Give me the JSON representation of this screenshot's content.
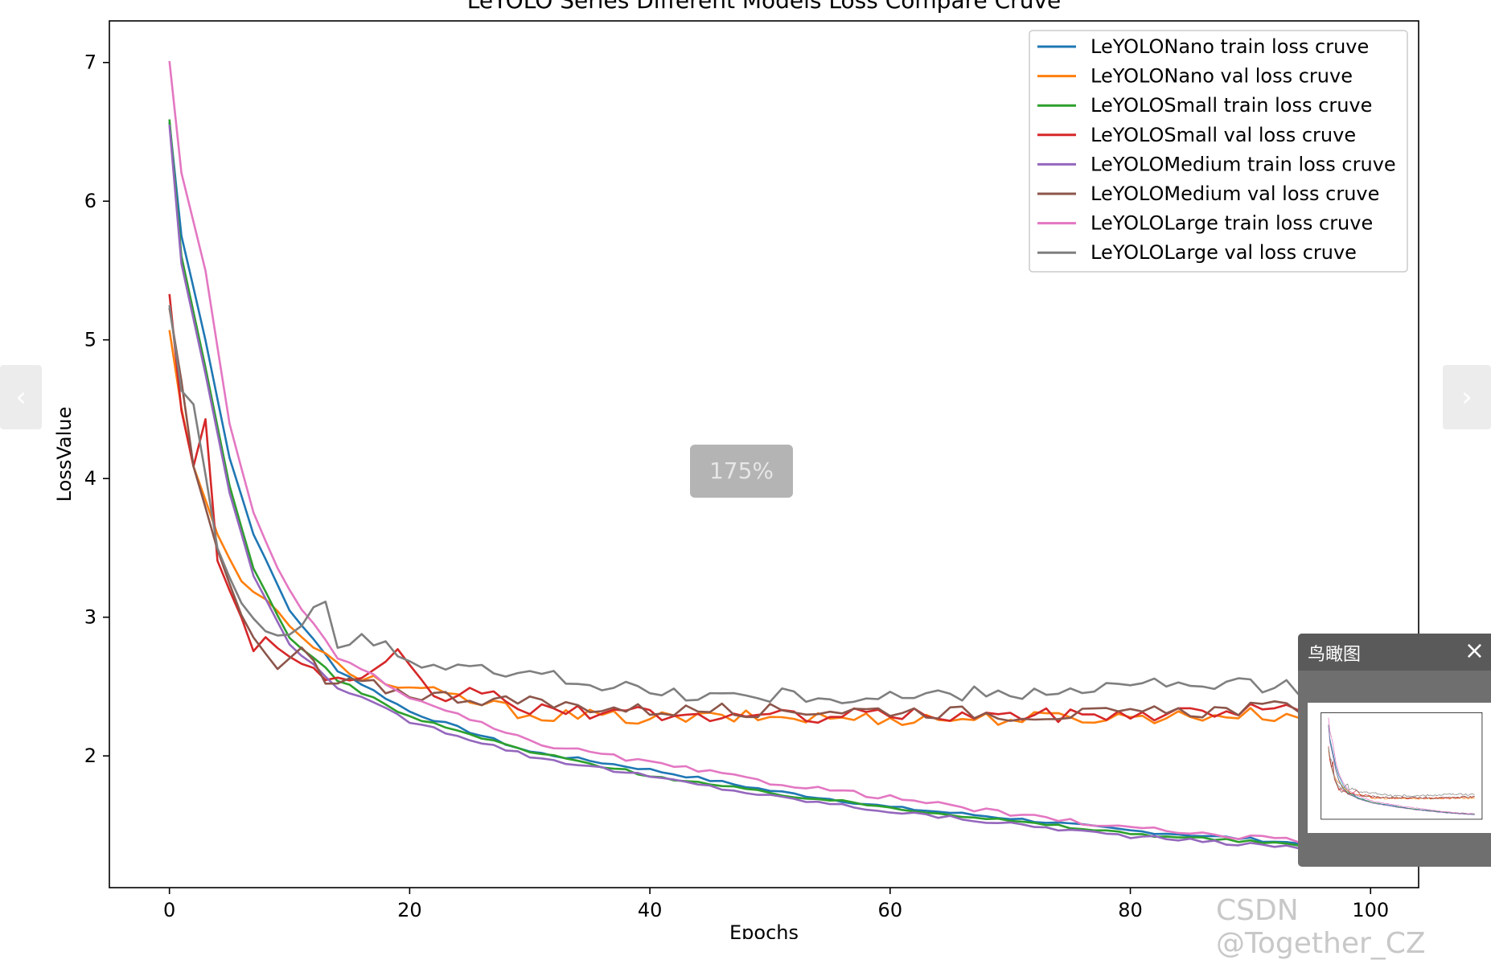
{
  "chart_data": {
    "type": "line",
    "title": "LeYOLO Series Different Models Loss Compare Cruve",
    "xlabel": "Epochs",
    "ylabel": "LossValue",
    "xlim": [
      -5,
      104
    ],
    "ylim": [
      1.05,
      7.3
    ],
    "xticks": [
      0,
      20,
      40,
      60,
      80,
      100
    ],
    "yticks": [
      2,
      3,
      4,
      5,
      6,
      7
    ],
    "grid": false,
    "legend_position": "top-right",
    "series": [
      {
        "name": "LeYOLONano train loss cruve",
        "color": "#1f77b4",
        "start": 6.57,
        "train": true,
        "end": 1.33,
        "anchors": [
          [
            0,
            6.57
          ],
          [
            1,
            5.75
          ],
          [
            3,
            5.0
          ],
          [
            5,
            4.15
          ],
          [
            7,
            3.6
          ],
          [
            10,
            3.05
          ],
          [
            14,
            2.62
          ],
          [
            20,
            2.32
          ],
          [
            30,
            2.03
          ],
          [
            40,
            1.9
          ],
          [
            50,
            1.75
          ],
          [
            60,
            1.63
          ],
          [
            70,
            1.55
          ],
          [
            80,
            1.46
          ],
          [
            90,
            1.4
          ],
          [
            99,
            1.33
          ]
        ],
        "noise": 0.012
      },
      {
        "name": "LeYOLONano val loss cruve",
        "color": "#ff7f0e",
        "anchors": [
          [
            0,
            5.07
          ],
          [
            1,
            4.5
          ],
          [
            2,
            4.1
          ],
          [
            4,
            3.6
          ],
          [
            6,
            3.25
          ],
          [
            8,
            3.12
          ],
          [
            10,
            2.95
          ],
          [
            12,
            2.75
          ],
          [
            16,
            2.58
          ],
          [
            20,
            2.48
          ],
          [
            25,
            2.4
          ],
          [
            30,
            2.3
          ],
          [
            40,
            2.27
          ],
          [
            50,
            2.28
          ],
          [
            60,
            2.27
          ],
          [
            70,
            2.27
          ],
          [
            80,
            2.28
          ],
          [
            90,
            2.3
          ],
          [
            99,
            2.27
          ]
        ],
        "noise": 0.05
      },
      {
        "name": "LeYOLOSmall train loss cruve",
        "color": "#2ca02c",
        "anchors": [
          [
            0,
            6.59
          ],
          [
            1,
            5.6
          ],
          [
            3,
            4.8
          ],
          [
            5,
            3.95
          ],
          [
            7,
            3.35
          ],
          [
            10,
            2.85
          ],
          [
            14,
            2.55
          ],
          [
            20,
            2.28
          ],
          [
            30,
            2.03
          ],
          [
            40,
            1.86
          ],
          [
            50,
            1.73
          ],
          [
            60,
            1.63
          ],
          [
            70,
            1.53
          ],
          [
            80,
            1.44
          ],
          [
            90,
            1.38
          ],
          [
            99,
            1.33
          ]
        ],
        "noise": 0.012
      },
      {
        "name": "LeYOLOSmall val loss cruve",
        "color": "#d62728",
        "anchors": [
          [
            0,
            5.33
          ],
          [
            1,
            4.5
          ],
          [
            2,
            4.1
          ],
          [
            3,
            4.42
          ],
          [
            4,
            3.4
          ],
          [
            6,
            3.0
          ],
          [
            7,
            2.77
          ],
          [
            8,
            2.85
          ],
          [
            10,
            2.72
          ],
          [
            12,
            2.6
          ],
          [
            16,
            2.52
          ],
          [
            19,
            2.72
          ],
          [
            22,
            2.4
          ],
          [
            26,
            2.48
          ],
          [
            30,
            2.33
          ],
          [
            40,
            2.3
          ],
          [
            50,
            2.28
          ],
          [
            60,
            2.3
          ],
          [
            70,
            2.29
          ],
          [
            80,
            2.3
          ],
          [
            90,
            2.33
          ],
          [
            99,
            2.38
          ]
        ],
        "noise": 0.05
      },
      {
        "name": "LeYOLOMedium train loss cruve",
        "color": "#9467bd",
        "anchors": [
          [
            0,
            6.55
          ],
          [
            1,
            5.55
          ],
          [
            3,
            4.75
          ],
          [
            5,
            3.9
          ],
          [
            7,
            3.3
          ],
          [
            10,
            2.8
          ],
          [
            14,
            2.5
          ],
          [
            20,
            2.25
          ],
          [
            30,
            2.0
          ],
          [
            40,
            1.85
          ],
          [
            50,
            1.71
          ],
          [
            60,
            1.6
          ],
          [
            70,
            1.51
          ],
          [
            80,
            1.42
          ],
          [
            90,
            1.36
          ],
          [
            99,
            1.32
          ]
        ],
        "noise": 0.014
      },
      {
        "name": "LeYOLOMedium val loss cruve",
        "color": "#8c564b",
        "anchors": [
          [
            0,
            5.23
          ],
          [
            1,
            4.7
          ],
          [
            2,
            4.1
          ],
          [
            4,
            3.5
          ],
          [
            6,
            3.0
          ],
          [
            7,
            2.85
          ],
          [
            9,
            2.62
          ],
          [
            11,
            2.78
          ],
          [
            13,
            2.52
          ],
          [
            16,
            2.52
          ],
          [
            20,
            2.45
          ],
          [
            25,
            2.42
          ],
          [
            30,
            2.38
          ],
          [
            40,
            2.33
          ],
          [
            50,
            2.33
          ],
          [
            60,
            2.33
          ],
          [
            70,
            2.3
          ],
          [
            80,
            2.3
          ],
          [
            90,
            2.34
          ],
          [
            99,
            2.37
          ]
        ],
        "noise": 0.05
      },
      {
        "name": "LeYOLOLarge train loss cruve",
        "color": "#e377c2",
        "anchors": [
          [
            0,
            7.01
          ],
          [
            1,
            6.2
          ],
          [
            3,
            5.5
          ],
          [
            5,
            4.4
          ],
          [
            7,
            3.75
          ],
          [
            9,
            3.35
          ],
          [
            11,
            3.05
          ],
          [
            14,
            2.72
          ],
          [
            20,
            2.42
          ],
          [
            30,
            2.1
          ],
          [
            40,
            1.95
          ],
          [
            50,
            1.81
          ],
          [
            60,
            1.7
          ],
          [
            70,
            1.58
          ],
          [
            80,
            1.48
          ],
          [
            90,
            1.41
          ],
          [
            99,
            1.37
          ]
        ],
        "noise": 0.018
      },
      {
        "name": "LeYOLOLarge val loss cruve",
        "color": "#7f7f7f",
        "anchors": [
          [
            0,
            5.25
          ],
          [
            1,
            4.65
          ],
          [
            2,
            4.55
          ],
          [
            4,
            3.5
          ],
          [
            6,
            3.1
          ],
          [
            8,
            2.9
          ],
          [
            10,
            2.86
          ],
          [
            12,
            3.02
          ],
          [
            13,
            3.07
          ],
          [
            14,
            2.78
          ],
          [
            16,
            2.88
          ],
          [
            18,
            2.82
          ],
          [
            20,
            2.68
          ],
          [
            25,
            2.62
          ],
          [
            30,
            2.58
          ],
          [
            35,
            2.55
          ],
          [
            40,
            2.45
          ],
          [
            50,
            2.43
          ],
          [
            60,
            2.42
          ],
          [
            70,
            2.45
          ],
          [
            80,
            2.5
          ],
          [
            90,
            2.5
          ],
          [
            99,
            2.5
          ]
        ],
        "noise": 0.06
      }
    ]
  },
  "viewer": {
    "prev_icon": "‹",
    "next_icon": "›",
    "zoom_label": "175%",
    "overview_title": "鸟瞰图",
    "overview_close": "×"
  },
  "watermark": "CSDN @Together_CZ"
}
